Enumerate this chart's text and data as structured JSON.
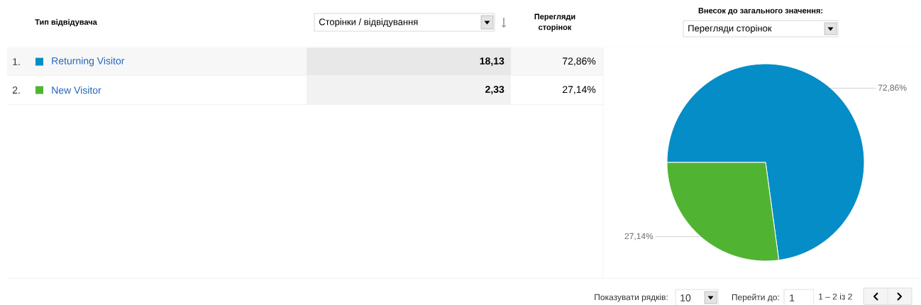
{
  "chart_data": [
    {
      "type": "other",
      "xlabel": "Тип відвідувача",
      "annotations": [
        "1.",
        "2.",
        "Сторінки / відвідування",
        "Перегляди сторінок",
        "18,13",
        "72,86%",
        "2,33",
        "27,14%",
        "Показувати рядків:",
        "10",
        "Перейти до:",
        "1",
        "1 – 2 із 2"
      ]
    },
    {
      "type": "pie",
      "title": "Внесок до загального значення:",
      "subtitle": "Перегляди сторінок",
      "categories": [
        "Returning Visitor",
        "New Visitor"
      ],
      "values": [
        72.86,
        27.14
      ],
      "colors": [
        "#058dc7",
        "#50b432"
      ],
      "value_labels": [
        "72,86%",
        "27,14%"
      ],
      "legend": "left"
    }
  ]
}
